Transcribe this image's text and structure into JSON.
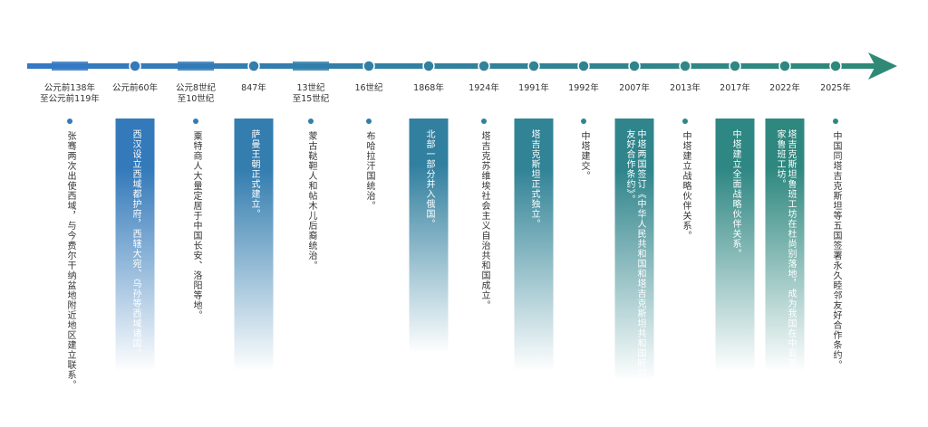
{
  "colors": {
    "start": "#3578c4",
    "end": "#2e8a76",
    "text": "#333333"
  },
  "events": [
    {
      "date": "公元前138年\n至公元前119年",
      "text": "张骞两次出使西域，与今费尔干纳盆地附近地区建立联系。",
      "style": "dot"
    },
    {
      "date": "公元前60年",
      "text": "西汉设立西域都护府，西辖大宛、乌孙等西域诸国。",
      "style": "card"
    },
    {
      "date": "公元8世纪\n至10世纪",
      "text": "粟特商人大量定居于中国长安、洛阳等地。",
      "style": "dot"
    },
    {
      "date": "847年",
      "text": "萨曼王朝正式建立。",
      "style": "card"
    },
    {
      "date": "13世纪\n至15世纪",
      "text": "蒙古鞑靼人和帖木儿后裔统治。",
      "style": "dot"
    },
    {
      "date": "16世纪",
      "text": "布哈拉汗国统治。",
      "style": "dot"
    },
    {
      "date": "1868年",
      "text": "北部一部分并入俄国。",
      "style": "card"
    },
    {
      "date": "1924年",
      "text": "塔吉克苏维埃社会主义自治共和国成立。",
      "style": "dot"
    },
    {
      "date": "1991年",
      "text": "塔吉克斯坦正式独立。",
      "style": "card"
    },
    {
      "date": "1992年",
      "text": "中塔建交。",
      "style": "dot"
    },
    {
      "date": "2007年",
      "text": "中塔两国签订《中华人民共和国和塔吉克斯坦共和国睦邻友好合作条约》。",
      "style": "card"
    },
    {
      "date": "2013年",
      "text": "中塔建立战略伙伴关系。",
      "style": "dot"
    },
    {
      "date": "2017年",
      "text": "中塔建立全面战略伙伴关系。",
      "style": "card"
    },
    {
      "date": "2022年",
      "text": "塔吉克斯坦鲁班工坊在杜尚别落地，成为我国在中亚首家鲁班工坊。",
      "style": "card"
    },
    {
      "date": "2025年",
      "text": "中国同塔吉克斯坦等五国签署永久睦邻友好合作条约。",
      "style": "dot"
    }
  ]
}
